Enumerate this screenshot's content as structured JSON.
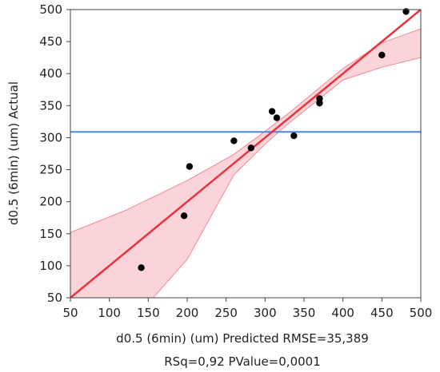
{
  "chart_data": {
    "type": "scatter",
    "xlabel_line1": "d0.5 (6min) (um) Predicted RMSE=35,389",
    "xlabel_line2": "RSq=0,92 PValue=0,0001",
    "ylabel": "d0.5 (6min) (um) Actual",
    "xlim": [
      50,
      500
    ],
    "ylim": [
      50,
      500
    ],
    "xticks": [
      50,
      100,
      150,
      200,
      250,
      300,
      350,
      400,
      450,
      500
    ],
    "yticks": [
      50,
      100,
      150,
      200,
      250,
      300,
      350,
      400,
      450,
      500
    ],
    "grid": false,
    "points": [
      {
        "x": 141,
        "y": 97
      },
      {
        "x": 196,
        "y": 178
      },
      {
        "x": 203,
        "y": 255
      },
      {
        "x": 260,
        "y": 295
      },
      {
        "x": 282,
        "y": 284
      },
      {
        "x": 309,
        "y": 341
      },
      {
        "x": 315,
        "y": 331
      },
      {
        "x": 337,
        "y": 303
      },
      {
        "x": 370,
        "y": 361
      },
      {
        "x": 370,
        "y": 354
      },
      {
        "x": 450,
        "y": 429
      },
      {
        "x": 481,
        "y": 497
      }
    ],
    "fit_line": [
      [
        50,
        50
      ],
      [
        500,
        500
      ]
    ],
    "mean_line_y": 309,
    "confidence_band": {
      "x": [
        50,
        120,
        200,
        260,
        300,
        330,
        400,
        450,
        500
      ],
      "upper": [
        152,
        186,
        233,
        274,
        310,
        338,
        408,
        448,
        470
      ],
      "lower": [
        -52,
        0,
        110,
        242,
        290,
        322,
        390,
        410,
        425
      ]
    },
    "colors": {
      "points": "#000000",
      "fit_line": "#e8323c",
      "mean_line": "#4a86e8",
      "band_fill": "#f9c6cc",
      "band_edge": "#f08a96",
      "axis": "#444444"
    }
  }
}
